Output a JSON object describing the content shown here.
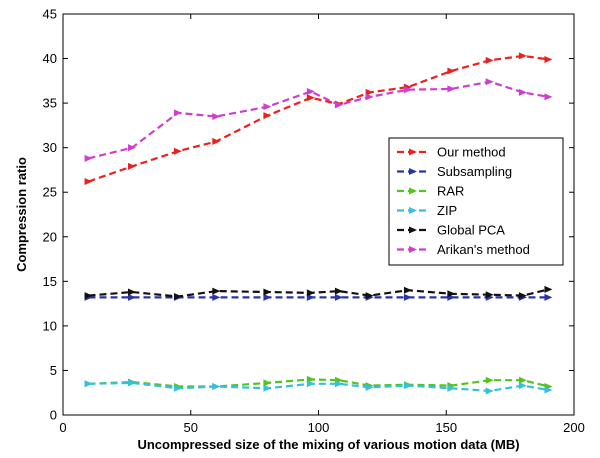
{
  "chart_data": {
    "type": "line",
    "title": "",
    "xlabel": "Uncompressed size of the mixing of various motion data (MB)",
    "ylabel": "Compression ratio",
    "xlim": [
      0,
      200
    ],
    "ylim": [
      0,
      45
    ],
    "xticks": [
      0,
      50,
      100,
      150,
      200
    ],
    "yticks": [
      0,
      5,
      10,
      15,
      20,
      25,
      30,
      35,
      40,
      45
    ],
    "grid": false,
    "legend_position": "center-right",
    "series": [
      {
        "name": "Our method",
        "color": "#e8231f",
        "marker": "arrow-right",
        "x": [
          10,
          27,
          45,
          60,
          80,
          97,
          108,
          120,
          135,
          152,
          167,
          180,
          190
        ],
        "y": [
          26.2,
          27.9,
          29.6,
          30.7,
          33.6,
          35.6,
          34.9,
          36.2,
          36.8,
          38.6,
          39.8,
          40.3,
          39.9
        ]
      },
      {
        "name": "Subsampling",
        "color": "#2b33a8",
        "marker": "arrow-right",
        "x": [
          10,
          27,
          45,
          60,
          80,
          97,
          108,
          120,
          135,
          152,
          167,
          180,
          190
        ],
        "y": [
          13.2,
          13.2,
          13.2,
          13.2,
          13.2,
          13.2,
          13.2,
          13.2,
          13.2,
          13.2,
          13.2,
          13.2,
          13.2
        ]
      },
      {
        "name": "RAR",
        "color": "#52c41a",
        "marker": "arrow-right",
        "x": [
          10,
          27,
          45,
          60,
          80,
          97,
          108,
          120,
          135,
          152,
          167,
          180,
          190
        ],
        "y": [
          3.5,
          3.7,
          3.2,
          3.2,
          3.6,
          4.0,
          3.9,
          3.3,
          3.4,
          3.3,
          3.9,
          3.9,
          3.2
        ]
      },
      {
        "name": "ZIP",
        "color": "#35bfe0",
        "marker": "arrow-right",
        "x": [
          10,
          27,
          45,
          60,
          80,
          97,
          108,
          120,
          135,
          152,
          167,
          180,
          190
        ],
        "y": [
          3.5,
          3.6,
          3.0,
          3.2,
          3.0,
          3.5,
          3.5,
          3.1,
          3.3,
          3.0,
          2.7,
          3.3,
          2.8
        ]
      },
      {
        "name": "Global PCA",
        "color": "#111111",
        "marker": "arrow-right",
        "x": [
          10,
          27,
          45,
          60,
          80,
          97,
          108,
          120,
          135,
          152,
          167,
          180,
          190
        ],
        "y": [
          13.4,
          13.8,
          13.3,
          13.9,
          13.8,
          13.7,
          13.9,
          13.4,
          14.0,
          13.6,
          13.5,
          13.4,
          14.1
        ]
      },
      {
        "name": "Arikan's method",
        "color": "#cf3ed0",
        "marker": "arrow-right",
        "x": [
          10,
          27,
          45,
          60,
          80,
          97,
          108,
          120,
          135,
          152,
          167,
          180,
          190
        ],
        "y": [
          28.8,
          30.0,
          33.9,
          33.5,
          34.6,
          36.3,
          34.8,
          35.7,
          36.5,
          36.6,
          37.4,
          36.2,
          35.7
        ]
      }
    ]
  }
}
